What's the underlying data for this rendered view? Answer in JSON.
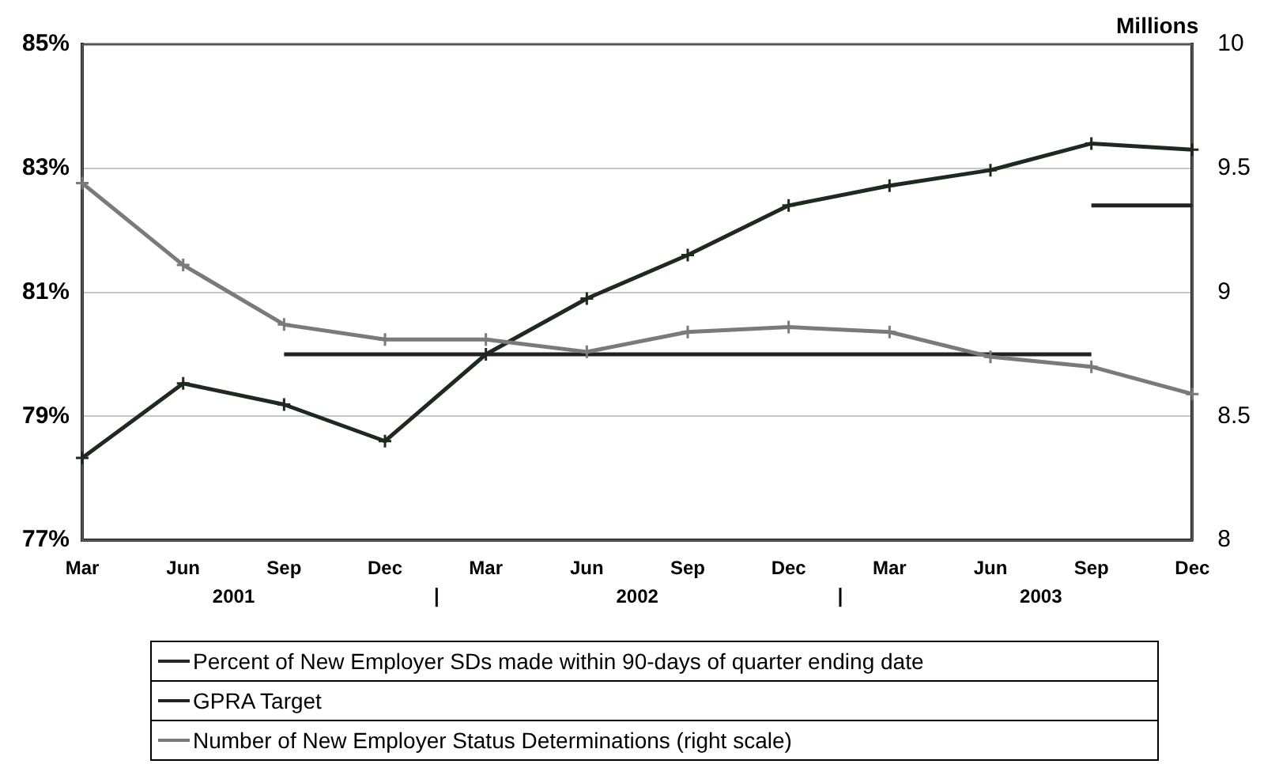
{
  "chart_data": {
    "type": "line",
    "categories": [
      "Mar",
      "Jun",
      "Sep",
      "Dec",
      "Mar",
      "Jun",
      "Sep",
      "Dec",
      "Mar",
      "Jun",
      "Sep",
      "Dec"
    ],
    "series": [
      {
        "name": "Percent of New Employer SDs made within 90-days of quarter ending date",
        "color": "#1f2a1f",
        "marker": "cross",
        "values": [
          78.33,
          79.53,
          79.19,
          78.6,
          80.0,
          80.9,
          81.6,
          82.4,
          82.72,
          82.97,
          83.4,
          83.3
        ]
      },
      {
        "name": "GPRA Target",
        "color": "#222222",
        "marker": "none",
        "values": [
          null,
          null,
          80.0,
          80.0,
          80.0,
          80.0,
          80.0,
          80.0,
          80.0,
          80.0,
          80.0,
          null
        ]
      },
      {
        "color": "#222222",
        "marker": "none",
        "values": [
          null,
          null,
          null,
          null,
          null,
          null,
          null,
          null,
          null,
          null,
          82.4,
          82.4
        ]
      },
      {
        "name": "Number of New Employer Status Determinations (right scale)",
        "color": "#7a7a7a",
        "marker": "cross",
        "axis": "y2",
        "values": [
          9.44,
          9.11,
          8.87,
          8.81,
          8.81,
          8.76,
          8.84,
          8.86,
          8.84,
          8.74,
          8.7,
          8.59
        ]
      }
    ],
    "ylim": [
      77,
      85
    ],
    "yticks": [
      {
        "value": 77,
        "label": "77%"
      },
      {
        "value": 79,
        "label": "79%"
      },
      {
        "value": 81,
        "label": "81%"
      },
      {
        "value": 83,
        "label": "83%"
      },
      {
        "value": 85,
        "label": "85%"
      }
    ],
    "y2lim": [
      8,
      10
    ],
    "y2ticks": [
      8,
      8.5,
      9,
      9.5,
      10
    ],
    "y2label": "Millions",
    "annotations": [
      "2001",
      "2002",
      "2003"
    ],
    "grid": "y",
    "legend": "bottom",
    "line_style": "solid"
  }
}
